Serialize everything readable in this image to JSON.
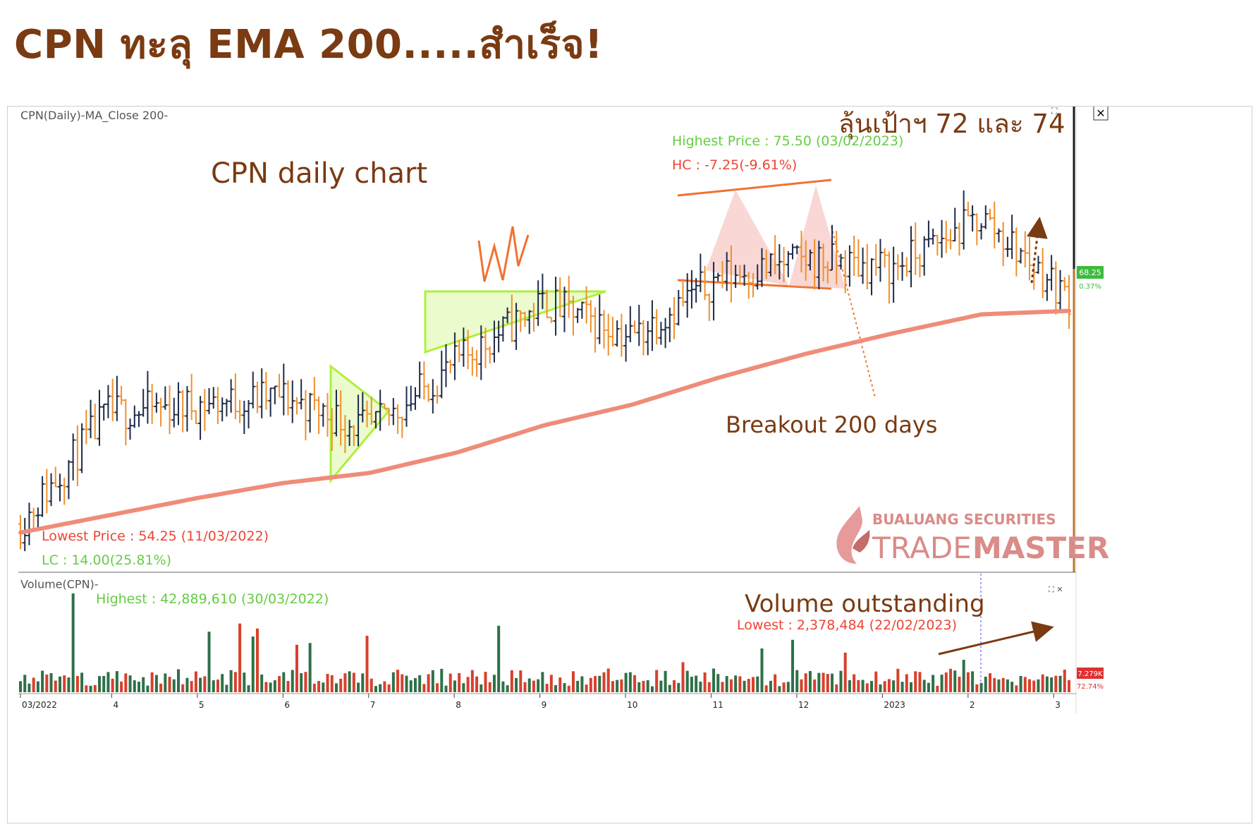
{
  "headline": "CPN ทะลุ EMA 200.....สำเร็จ!",
  "chart_data": {
    "type": "candlestick",
    "price_panel": {
      "header_label": "CPN(Daily)-MA_Close 200-",
      "title_annotation": "CPN daily chart",
      "target_annotation": "ลุ้นเป้าฯ 72 และ 74",
      "breakout_annotation": "Breakout 200 days",
      "highest_label": "Highest Price : 75.50 (03/02/2023)",
      "hc_label": "HC : -7.25(-9.61%)",
      "lowest_label": "Lowest Price : 54.25 (11/03/2022)",
      "lc_label": "LC : 14.00(25.81%)",
      "last_price": "68.25",
      "last_change": "0.37%",
      "ylim": [
        53,
        77
      ],
      "series": [
        {
          "name": "Close",
          "x": [
            "2022-03",
            "2022-04",
            "2022-05",
            "2022-06",
            "2022-07",
            "2022-08",
            "2022-09",
            "2022-10",
            "2022-11",
            "2022-12",
            "2023-01",
            "2023-02",
            "2023-03"
          ],
          "values": [
            55.0,
            61.5,
            62.0,
            62.5,
            60.5,
            64.5,
            68.0,
            66.0,
            69.5,
            70.5,
            70.0,
            73.0,
            68.25
          ]
        },
        {
          "name": "MA_Close 200",
          "x": [
            "2022-03",
            "2022-04",
            "2022-05",
            "2022-06",
            "2022-07",
            "2022-08",
            "2022-09",
            "2022-10",
            "2022-11",
            "2022-12",
            "2023-01",
            "2023-02",
            "2023-03"
          ],
          "values": [
            54.5,
            55.5,
            56.5,
            57.4,
            58.0,
            59.2,
            60.8,
            62.0,
            63.6,
            65.0,
            66.2,
            67.3,
            67.5
          ]
        }
      ]
    },
    "volume_panel": {
      "header_label": "Volume(CPN)-",
      "volume_annotation": "Volume outstanding",
      "highest_label": "Highest : 42,889,610 (30/03/2022)",
      "lowest_label": "Lowest : 2,378,484 (22/02/2023)",
      "last_volume": "7.279K",
      "last_pct": "72.74%"
    },
    "x_tick_labels": [
      "03/2022",
      "4",
      "5",
      "6",
      "7",
      "8",
      "9",
      "10",
      "11",
      "12",
      "2023",
      "2",
      "3"
    ],
    "watermark": {
      "line1": "BUALUANG SECURITIES",
      "line2a": "TRADE",
      "line2b": "MASTER"
    },
    "colors": {
      "up": "#1c2a48",
      "down": "#f0902c",
      "ma": "#ef8c78",
      "annotation": "#7a3a12",
      "highest": "#66cc44",
      "lowest": "#ee4433",
      "vol_up": "#2f7048",
      "vol_down": "#d8402c",
      "triangle": "#aef03c",
      "pattern": "#f07230"
    }
  }
}
